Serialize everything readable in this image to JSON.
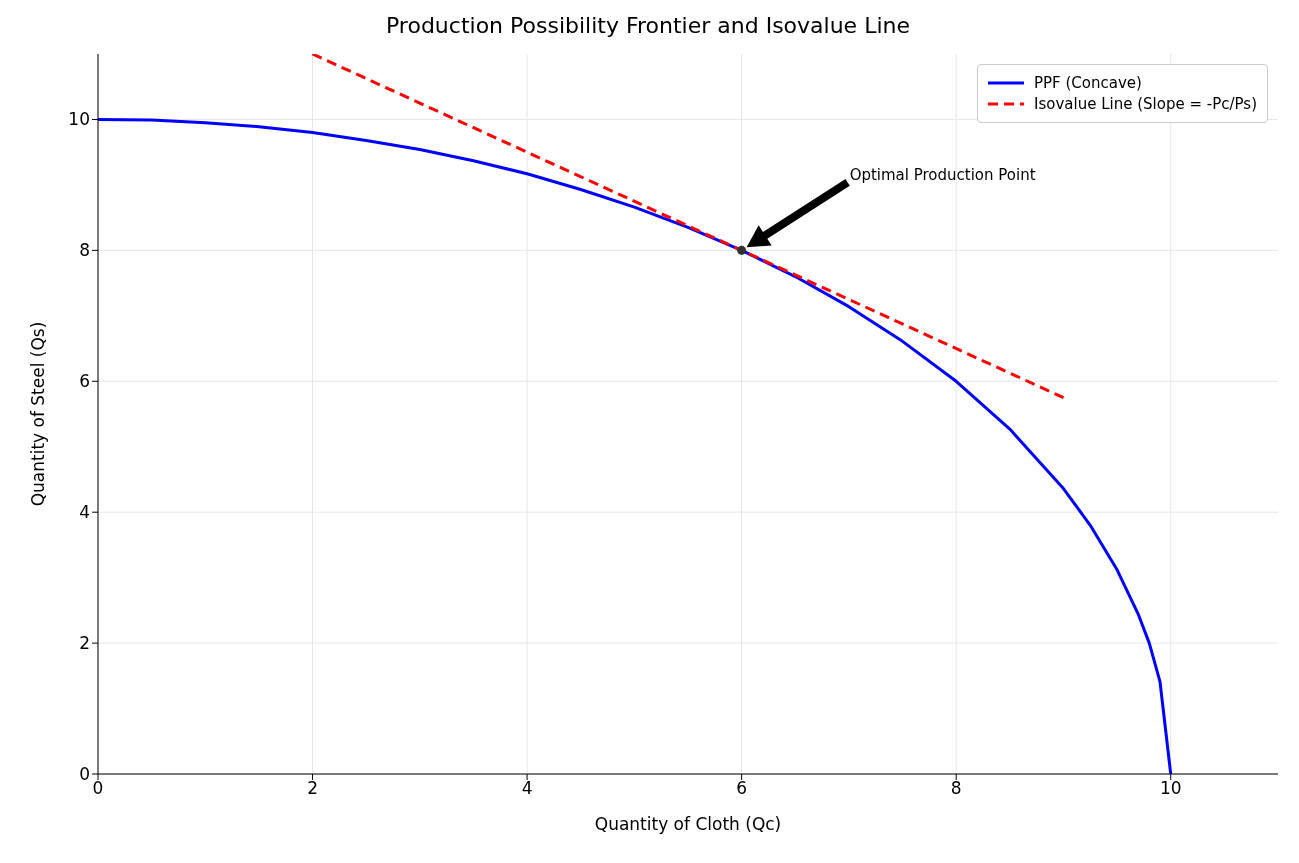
{
  "chart_data": {
    "type": "line",
    "title": "Production Possibility Frontier and Isovalue Line",
    "xlabel": "Quantity of Cloth (Qc)",
    "ylabel": "Quantity of Steel (Qs)",
    "xlim": [
      0,
      11
    ],
    "ylim": [
      0,
      11
    ],
    "xticks": [
      0,
      2,
      4,
      6,
      8,
      10
    ],
    "yticks": [
      0,
      2,
      4,
      6,
      8,
      10
    ],
    "grid": true,
    "legend": "top right",
    "series": [
      {
        "name": "PPF (Concave)",
        "color": "#0000ff",
        "line_style": "solid",
        "x": [
          0,
          0.5,
          1,
          1.5,
          2,
          2.5,
          3,
          3.5,
          4,
          4.5,
          5,
          5.5,
          6,
          6.5,
          7,
          7.5,
          8,
          8.5,
          9,
          9.25,
          9.5,
          9.7,
          9.8,
          9.9,
          10
        ],
        "values": [
          10,
          9.99,
          9.95,
          9.89,
          9.8,
          9.68,
          9.54,
          9.37,
          9.17,
          8.93,
          8.66,
          8.35,
          8,
          7.6,
          7.14,
          6.61,
          6,
          5.27,
          4.36,
          3.8,
          3.12,
          2.43,
          2,
          1.41,
          0
        ]
      },
      {
        "name": "Isovalue Line (Slope = -Pc/Ps)",
        "color": "#ff0000",
        "line_style": "dashed",
        "x": [
          2,
          9
        ],
        "values": [
          11,
          5.75
        ]
      },
      {
        "type": "scatter",
        "color": "#333333",
        "marker": "circle",
        "x": [
          6
        ],
        "values": [
          8
        ]
      }
    ],
    "annotations": [
      "Optimal Production Point"
    ]
  }
}
